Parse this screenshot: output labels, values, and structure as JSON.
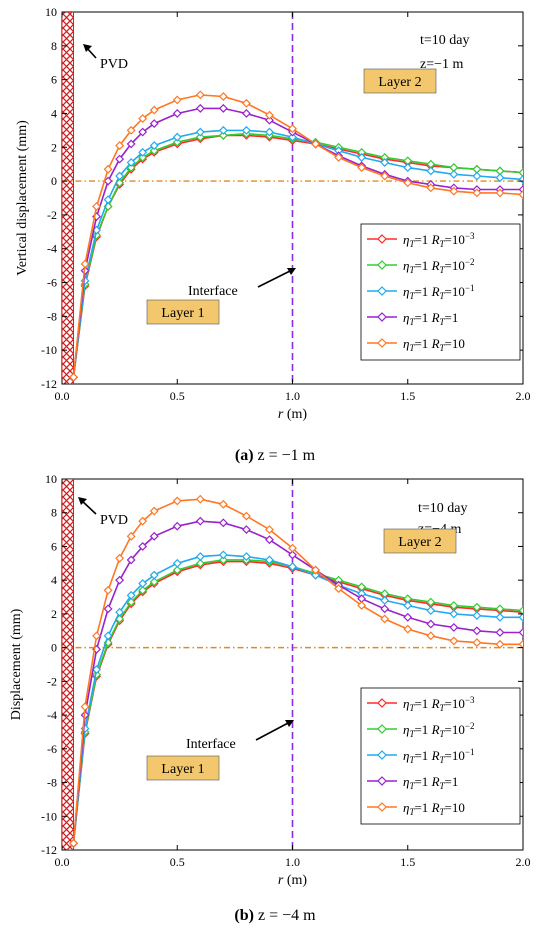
{
  "chart_data": [
    {
      "type": "line",
      "panel": "a",
      "caption_letter": "(a)",
      "caption_text": "z = −1 m",
      "ylabel": "Vertical displacement  (mm)",
      "xlabel": "r (m)",
      "xlim": [
        0.0,
        2.0
      ],
      "ylim": [
        -12,
        10
      ],
      "xticks": [
        0.0,
        0.5,
        1.0,
        1.5,
        2.0
      ],
      "xtick_labels": [
        "0.0",
        "0.5",
        "1.0",
        "1.5",
        "2.0"
      ],
      "yticks": [
        -12,
        -10,
        -8,
        -6,
        -4,
        -2,
        0,
        2,
        4,
        6,
        8,
        10
      ],
      "ytick_labels": [
        "-12",
        "-10",
        "-8",
        "-6",
        "-4",
        "-2",
        "0",
        "2",
        "4",
        "6",
        "8",
        "10"
      ],
      "annotations": {
        "t_label": "t=10 day",
        "z_label": "z=−1 m",
        "pvd_label": "PVD",
        "interface_label": "Interface",
        "layer1_label": "Layer 1",
        "layer2_label": "Layer 2"
      },
      "interface_x": 1.0,
      "pvd_width": 0.05,
      "zero_line_y": 0,
      "series": [
        {
          "name": "ηT=1 RT=10⁻³",
          "color": "#ff2a2a",
          "x": [
            0.05,
            0.1,
            0.15,
            0.2,
            0.25,
            0.3,
            0.35,
            0.4,
            0.5,
            0.6,
            0.7,
            0.8,
            0.9,
            1.0,
            1.1,
            1.2,
            1.3,
            1.4,
            1.5,
            1.6,
            1.7,
            1.8,
            1.9,
            2.0
          ],
          "y": [
            -11.6,
            -6.2,
            -3.3,
            -1.5,
            -0.2,
            0.7,
            1.3,
            1.7,
            2.2,
            2.5,
            2.7,
            2.7,
            2.6,
            2.4,
            2.2,
            1.9,
            1.6,
            1.3,
            1.1,
            0.9,
            0.8,
            0.7,
            0.6,
            0.5
          ]
        },
        {
          "name": "ηT=1 RT=10⁻²",
          "color": "#33cc33",
          "x": [
            0.05,
            0.1,
            0.15,
            0.2,
            0.25,
            0.3,
            0.35,
            0.4,
            0.5,
            0.6,
            0.7,
            0.8,
            0.9,
            1.0,
            1.1,
            1.2,
            1.3,
            1.4,
            1.5,
            1.6,
            1.7,
            1.8,
            1.9,
            2.0
          ],
          "y": [
            -11.6,
            -6.1,
            -3.2,
            -1.5,
            -0.1,
            0.8,
            1.4,
            1.8,
            2.3,
            2.6,
            2.7,
            2.8,
            2.7,
            2.5,
            2.3,
            2.0,
            1.7,
            1.4,
            1.2,
            1.0,
            0.8,
            0.7,
            0.6,
            0.5
          ]
        },
        {
          "name": "ηT=1 RT=10⁻¹",
          "color": "#22aaee",
          "x": [
            0.05,
            0.1,
            0.15,
            0.2,
            0.25,
            0.3,
            0.35,
            0.4,
            0.5,
            0.6,
            0.7,
            0.8,
            0.9,
            1.0,
            1.1,
            1.2,
            1.3,
            1.4,
            1.5,
            1.6,
            1.7,
            1.8,
            1.9,
            2.0
          ],
          "y": [
            -11.6,
            -5.9,
            -2.9,
            -1.1,
            0.3,
            1.1,
            1.7,
            2.1,
            2.6,
            2.9,
            3.0,
            3.0,
            2.9,
            2.6,
            2.2,
            1.8,
            1.4,
            1.1,
            0.8,
            0.6,
            0.4,
            0.3,
            0.2,
            0.1
          ]
        },
        {
          "name": "ηT=1 RT=1",
          "color": "#9922cc",
          "x": [
            0.05,
            0.1,
            0.15,
            0.2,
            0.25,
            0.3,
            0.35,
            0.4,
            0.5,
            0.6,
            0.7,
            0.8,
            0.9,
            1.0,
            1.1,
            1.2,
            1.3,
            1.4,
            1.5,
            1.6,
            1.7,
            1.8,
            1.9,
            2.0
          ],
          "y": [
            -11.6,
            -5.3,
            -2.1,
            0.0,
            1.3,
            2.2,
            2.9,
            3.4,
            4.0,
            4.3,
            4.3,
            4.0,
            3.6,
            2.9,
            2.2,
            1.5,
            0.9,
            0.4,
            0.0,
            -0.2,
            -0.4,
            -0.5,
            -0.5,
            -0.5
          ]
        },
        {
          "name": "ηT=1 RT=10",
          "color": "#ff7722",
          "x": [
            0.05,
            0.1,
            0.15,
            0.2,
            0.25,
            0.3,
            0.35,
            0.4,
            0.5,
            0.6,
            0.7,
            0.8,
            0.9,
            1.0,
            1.1,
            1.2,
            1.3,
            1.4,
            1.5,
            1.6,
            1.7,
            1.8,
            1.9,
            2.0
          ],
          "y": [
            -11.6,
            -4.9,
            -1.5,
            0.7,
            2.1,
            3.0,
            3.7,
            4.2,
            4.8,
            5.1,
            5.0,
            4.6,
            3.9,
            3.1,
            2.2,
            1.4,
            0.8,
            0.3,
            -0.1,
            -0.4,
            -0.6,
            -0.7,
            -0.7,
            -0.8
          ]
        }
      ],
      "legend": {
        "placement": "lower-right",
        "entries": [
          {
            "eta": "η",
            "eta_sub": "T",
            "eta_val": "=1 ",
            "r": "R",
            "r_sub": "T",
            "r_val": "=10",
            "r_sup": "−3"
          },
          {
            "eta": "η",
            "eta_sub": "T",
            "eta_val": "=1 ",
            "r": "R",
            "r_sub": "T",
            "r_val": "=10",
            "r_sup": "−2"
          },
          {
            "eta": "η",
            "eta_sub": "T",
            "eta_val": "=1 ",
            "r": "R",
            "r_sub": "T",
            "r_val": "=10",
            "r_sup": "−1"
          },
          {
            "eta": "η",
            "eta_sub": "T",
            "eta_val": "=1 ",
            "r": "R",
            "r_sub": "T",
            "r_val": "=1",
            "r_sup": ""
          },
          {
            "eta": "η",
            "eta_sub": "T",
            "eta_val": "=1 ",
            "r": "R",
            "r_sub": "T",
            "r_val": "=10",
            "r_sup": ""
          }
        ]
      }
    },
    {
      "type": "line",
      "panel": "b",
      "caption_letter": "(b)",
      "caption_text": "z = −4 m",
      "ylabel": "Displacement  (mm)",
      "xlabel": "r (m)",
      "xlim": [
        0.0,
        2.0
      ],
      "ylim": [
        -12,
        10
      ],
      "xticks": [
        0.0,
        0.5,
        1.0,
        1.5,
        2.0
      ],
      "xtick_labels": [
        "0.0",
        "0.5",
        "1.0",
        "1.5",
        "2.0"
      ],
      "yticks": [
        -12,
        -10,
        -8,
        -6,
        -4,
        -2,
        0,
        2,
        4,
        6,
        8,
        10
      ],
      "ytick_labels": [
        "-12",
        "-10",
        "-8",
        "-6",
        "-4",
        "-2",
        "0",
        "2",
        "4",
        "6",
        "8",
        "10"
      ],
      "annotations": {
        "t_label": "t=10 day",
        "z_label": "z=−4 m",
        "pvd_label": "PVD",
        "interface_label": "Interface",
        "layer1_label": "Layer 1",
        "layer2_label": "Layer 2"
      },
      "interface_x": 1.0,
      "pvd_width": 0.05,
      "zero_line_y": 0,
      "series": [
        {
          "name": "ηT=1 RT=10⁻³",
          "color": "#ff2a2a",
          "x": [
            0.05,
            0.1,
            0.15,
            0.2,
            0.25,
            0.3,
            0.35,
            0.4,
            0.5,
            0.6,
            0.7,
            0.8,
            0.9,
            1.0,
            1.1,
            1.2,
            1.3,
            1.4,
            1.5,
            1.6,
            1.7,
            1.8,
            1.9,
            2.0
          ],
          "y": [
            -11.6,
            -5.1,
            -1.7,
            0.2,
            1.6,
            2.6,
            3.3,
            3.8,
            4.5,
            4.9,
            5.1,
            5.1,
            5.0,
            4.7,
            4.3,
            3.9,
            3.5,
            3.1,
            2.8,
            2.6,
            2.4,
            2.3,
            2.2,
            2.1
          ]
        },
        {
          "name": "ηT=1 RT=10⁻²",
          "color": "#33cc33",
          "x": [
            0.05,
            0.1,
            0.15,
            0.2,
            0.25,
            0.3,
            0.35,
            0.4,
            0.5,
            0.6,
            0.7,
            0.8,
            0.9,
            1.0,
            1.1,
            1.2,
            1.3,
            1.4,
            1.5,
            1.6,
            1.7,
            1.8,
            1.9,
            2.0
          ],
          "y": [
            -11.6,
            -5.0,
            -1.6,
            0.3,
            1.7,
            2.7,
            3.4,
            3.9,
            4.6,
            5.0,
            5.2,
            5.2,
            5.1,
            4.8,
            4.4,
            4.0,
            3.6,
            3.2,
            2.9,
            2.7,
            2.5,
            2.4,
            2.3,
            2.2
          ]
        },
        {
          "name": "ηT=1 RT=10⁻¹",
          "color": "#22aaee",
          "x": [
            0.05,
            0.1,
            0.15,
            0.2,
            0.25,
            0.3,
            0.35,
            0.4,
            0.5,
            0.6,
            0.7,
            0.8,
            0.9,
            1.0,
            1.1,
            1.2,
            1.3,
            1.4,
            1.5,
            1.6,
            1.7,
            1.8,
            1.9,
            2.0
          ],
          "y": [
            -11.6,
            -4.8,
            -1.3,
            0.7,
            2.1,
            3.1,
            3.8,
            4.3,
            5.0,
            5.4,
            5.5,
            5.4,
            5.2,
            4.8,
            4.3,
            3.7,
            3.2,
            2.8,
            2.5,
            2.2,
            2.0,
            1.9,
            1.8,
            1.8
          ]
        },
        {
          "name": "ηT=1 RT=1",
          "color": "#9922cc",
          "x": [
            0.05,
            0.1,
            0.15,
            0.2,
            0.25,
            0.3,
            0.35,
            0.4,
            0.5,
            0.6,
            0.7,
            0.8,
            0.9,
            1.0,
            1.1,
            1.2,
            1.3,
            1.4,
            1.5,
            1.6,
            1.7,
            1.8,
            1.9,
            2.0
          ],
          "y": [
            -11.6,
            -4.0,
            -0.1,
            2.3,
            4.0,
            5.2,
            6.0,
            6.6,
            7.2,
            7.5,
            7.4,
            7.0,
            6.4,
            5.5,
            4.6,
            3.7,
            2.9,
            2.3,
            1.8,
            1.4,
            1.2,
            1.0,
            0.9,
            0.9
          ]
        },
        {
          "name": "ηT=1 RT=10",
          "color": "#ff7722",
          "x": [
            0.05,
            0.1,
            0.15,
            0.2,
            0.25,
            0.3,
            0.35,
            0.4,
            0.5,
            0.6,
            0.7,
            0.8,
            0.9,
            1.0,
            1.1,
            1.2,
            1.3,
            1.4,
            1.5,
            1.6,
            1.7,
            1.8,
            1.9,
            2.0
          ],
          "y": [
            -11.6,
            -3.5,
            0.7,
            3.4,
            5.3,
            6.6,
            7.5,
            8.1,
            8.7,
            8.8,
            8.5,
            7.8,
            7.0,
            5.9,
            4.6,
            3.5,
            2.5,
            1.7,
            1.1,
            0.7,
            0.4,
            0.3,
            0.2,
            0.2
          ]
        }
      ],
      "legend": {
        "placement": "lower-right",
        "entries": [
          {
            "eta": "η",
            "eta_sub": "T",
            "eta_val": "=1 ",
            "r": "R",
            "r_sub": "T",
            "r_val": "=10",
            "r_sup": "−3"
          },
          {
            "eta": "η",
            "eta_sub": "T",
            "eta_val": "=1 ",
            "r": "R",
            "r_sub": "T",
            "r_val": "=10",
            "r_sup": "−2"
          },
          {
            "eta": "η",
            "eta_sub": "T",
            "eta_val": "=1 ",
            "r": "R",
            "r_sub": "T",
            "r_val": "=10",
            "r_sup": "−1"
          },
          {
            "eta": "η",
            "eta_sub": "T",
            "eta_val": "=1 ",
            "r": "R",
            "r_sub": "T",
            "r_val": "=1",
            "r_sup": ""
          },
          {
            "eta": "η",
            "eta_sub": "T",
            "eta_val": "=1 ",
            "r": "R",
            "r_sub": "T",
            "r_val": "=10",
            "r_sup": ""
          }
        ]
      },
      "style": {
        "layer_box_fill": "#f2c76e",
        "interface_color": "#8a2be2",
        "zero_line_color": "#e8891a",
        "pvd_color": "#cc2222"
      }
    }
  ]
}
